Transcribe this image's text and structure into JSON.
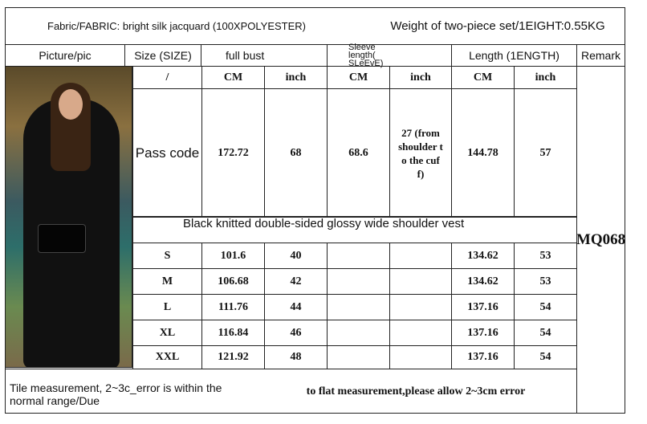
{
  "header": {
    "fabric": "Fabric/FABRIC: bright silk jacquard (100XPOLYESTER)",
    "weight": "Weight of two-piece set/1EIGHT:0.55KG"
  },
  "columns": {
    "picture": "Picture/pic",
    "size": "Size (SIZE)",
    "bust": "full bust",
    "sleeve": "Sleeve length( SLeEvE)",
    "length": "Length (1ENGTH)",
    "remark": "Remark"
  },
  "units": [
    "/",
    "CM",
    "inch",
    "CM",
    "inch",
    "CM",
    "inch"
  ],
  "pass_code": {
    "label": "Pass code",
    "bust_cm": "172.72",
    "bust_inch": "68",
    "sleeve_cm": "68.6",
    "sleeve_inch": "27 (from shoulder to the cuff)",
    "length_cm": "144.78",
    "length_inch": "57"
  },
  "vest_label": "Black knitted double-sided glossy wide shoulder vest",
  "remark_code": "MQ068",
  "rows": [
    {
      "size": "S",
      "bust_cm": "101.6",
      "bust_inch": "40",
      "length_cm": "134.62",
      "length_inch": "53"
    },
    {
      "size": "M",
      "bust_cm": "106.68",
      "bust_inch": "42",
      "length_cm": "134.62",
      "length_inch": "53"
    },
    {
      "size": "L",
      "bust_cm": "111.76",
      "bust_inch": "44",
      "length_cm": "137.16",
      "length_inch": "54"
    },
    {
      "size": "XL",
      "bust_cm": "116.84",
      "bust_inch": "46",
      "length_cm": "137.16",
      "length_inch": "54"
    },
    {
      "size": "XXL",
      "bust_cm": "121.92",
      "bust_inch": "48",
      "length_cm": "137.16",
      "length_inch": "54"
    }
  ],
  "footer": {
    "note_left": "Tile measurement, 2~3c_error is within the normal range/Due",
    "note_right": "to flat measurement,please allow 2~3cm error"
  }
}
